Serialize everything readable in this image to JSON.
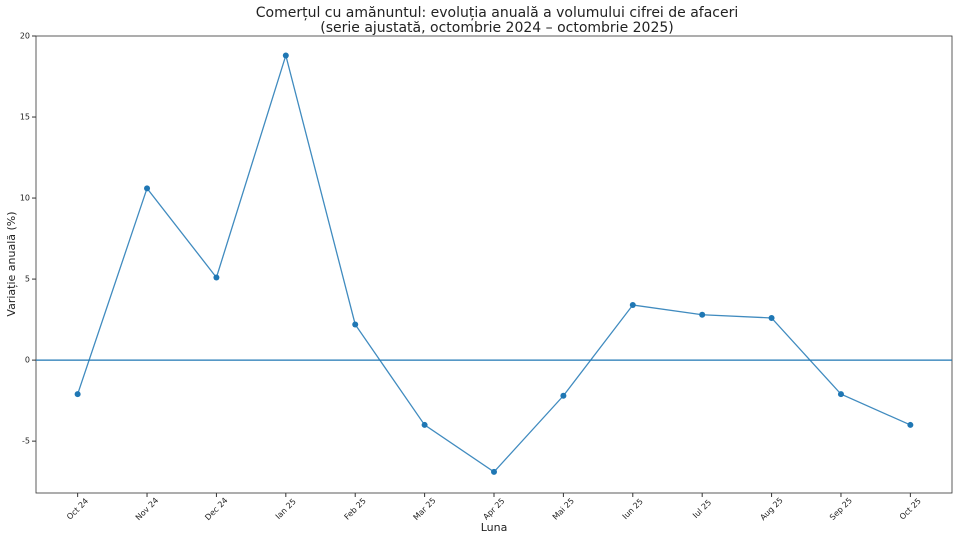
{
  "chart_data": {
    "type": "line",
    "title": "Comerțul cu amănuntul: evoluția anuală a volumului cifrei de afaceri",
    "subtitle": "(serie ajustată, octombrie 2024 – octombrie 2025)",
    "x_label": "Luna",
    "y_label": "Variație anuală (%)",
    "categories": [
      "Oct 24",
      "Nov 24",
      "Dec 24",
      "Ian 25",
      "Feb 25",
      "Mar 25",
      "Apr 25",
      "Mai 25",
      "Iun 25",
      "Iul 25",
      "Aug 25",
      "Sep 25",
      "Oct 25"
    ],
    "series": [
      {
        "color": "#1f77b4",
        "values": [
          -2.1,
          10.6,
          5.1,
          18.8,
          2.2,
          -4.0,
          -6.9,
          -2.2,
          3.4,
          2.8,
          2.6,
          -2.1,
          -4.0
        ]
      }
    ],
    "reference_line": 0,
    "ylim": [
      -8.2,
      20
    ],
    "yticks": [
      -5,
      0,
      5,
      10,
      15,
      20
    ],
    "grid": false
  }
}
